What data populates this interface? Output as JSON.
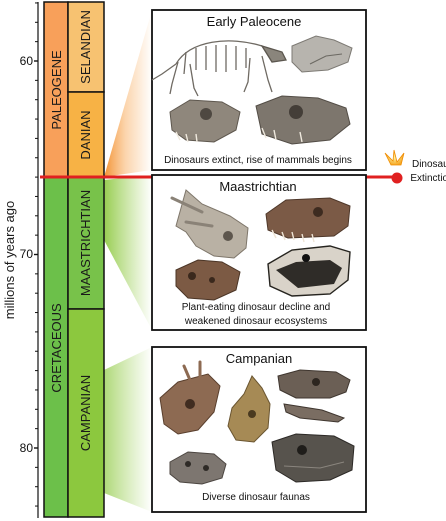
{
  "axis": {
    "label": "millions of years ago",
    "ticks": [
      "60",
      "70",
      "80"
    ]
  },
  "periods": [
    {
      "name": "PALEOGENE",
      "color": "#f8a05a"
    },
    {
      "name": "CRETACEOUS",
      "color": "#6cc04a"
    }
  ],
  "stages": [
    {
      "name": "SELANDIAN",
      "color": "#f7c271"
    },
    {
      "name": "DANIAN",
      "color": "#f7b245"
    },
    {
      "name": "MAASTRICHTIAN",
      "color": "#78c24a"
    },
    {
      "name": "CAMPANIAN",
      "color": "#8cc83e"
    }
  ],
  "event": {
    "line1": "Dinosaur",
    "line2": "Extinction",
    "color": "#e02020"
  },
  "panels": [
    {
      "title": "Early Paleocene",
      "caption": "Dinosaurs extinct, rise  of mammals begins",
      "fossils": [
        "mammal-skeleton",
        "mammal-jaw",
        "mammal-skull",
        "mammal-skull"
      ]
    },
    {
      "title": "Maastrichtian",
      "caption_line1": "Plant-eating dinosaur decline and",
      "caption_line2": "weakened dinosaur ecosystems",
      "fossils": [
        "triceratops-skull",
        "tyrannosaur-skull",
        "ankylosaur-skull",
        "hadrosaur-skull"
      ]
    },
    {
      "title": "Campanian",
      "caption": "Diverse dinosaur faunas",
      "fossils": [
        "ceratopsian-skull",
        "hadrosaur-skull",
        "tyrannosaur-skull",
        "ankylosaur-skull",
        "hadrosaur-skull"
      ]
    }
  ]
}
